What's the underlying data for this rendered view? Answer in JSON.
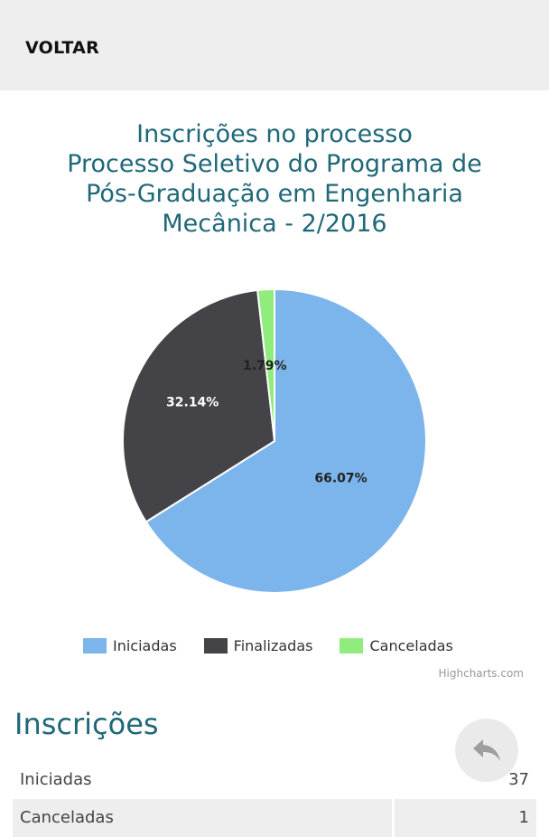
{
  "topbar": {
    "back_label": "VOLTAR"
  },
  "chart_data": {
    "type": "pie",
    "title_lines": [
      "Inscrições no processo",
      "Processo Seletivo do Programa de",
      "Pós-Graduação em Engenharia",
      "Mecânica - 2/2016"
    ],
    "series": [
      {
        "name": "Iniciadas",
        "value": 66.07,
        "label": "66.07%",
        "color": "#7cb5ec"
      },
      {
        "name": "Finalizadas",
        "value": 32.14,
        "label": "32.14%",
        "color": "#434348"
      },
      {
        "name": "Canceladas",
        "value": 1.79,
        "label": "1.79%",
        "color": "#90ed7d"
      }
    ],
    "legend_placement": "bottom",
    "credits": "Highcharts.com"
  },
  "stats": {
    "title": "Inscrições",
    "rows": [
      {
        "label": "Iniciadas",
        "value": "37"
      },
      {
        "label": "Canceladas",
        "value": "1"
      }
    ]
  },
  "fab": {
    "icon": "reply-icon",
    "color": "#9e9e9e"
  }
}
